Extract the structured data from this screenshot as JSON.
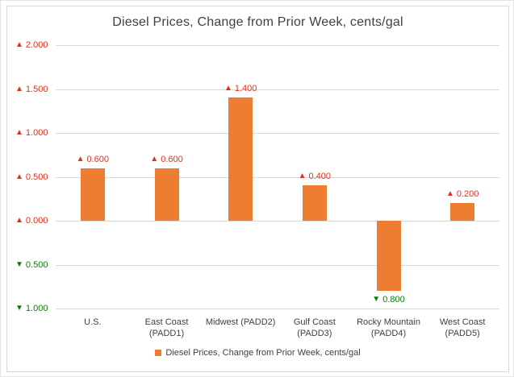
{
  "colors": {
    "bar": "#ED7D31",
    "up": "#E0301E",
    "down": "#107C10",
    "gridline": "#D9D9D9",
    "axis_text": "#404040",
    "title_text": "#404040"
  },
  "icons": {
    "up_triangle": "▲",
    "down_triangle": "▼"
  },
  "chart_data": {
    "type": "bar",
    "title": "Diesel Prices, Change from Prior Week, cents/gal",
    "xlabel": "",
    "ylabel": "",
    "ylim": [
      -1.0,
      2.0
    ],
    "grid": true,
    "categories": [
      "U.S.",
      "East Coast (PADD1)",
      "Midwest (PADD2)",
      "Gulf Coast (PADD3)",
      "Rocky Mountain (PADD4)",
      "West Coast (PADD5)"
    ],
    "category_lines": [
      [
        "U.S."
      ],
      [
        "East Coast",
        "(PADD1)"
      ],
      [
        "Midwest (PADD2)"
      ],
      [
        "Gulf Coast",
        "(PADD3)"
      ],
      [
        "Rocky Mountain",
        "(PADD4)"
      ],
      [
        "West Coast",
        "(PADD5)"
      ]
    ],
    "values": [
      0.6,
      0.6,
      1.4,
      0.4,
      -0.8,
      0.2
    ],
    "bar_labels": [
      {
        "dir": "up",
        "text": "0.600"
      },
      {
        "dir": "up",
        "text": "0.600"
      },
      {
        "dir": "up",
        "text": "1.400"
      },
      {
        "dir": "up",
        "text": "0.400"
      },
      {
        "dir": "down",
        "text": "0.800"
      },
      {
        "dir": "up",
        "text": "0.200"
      }
    ],
    "y_ticks": [
      {
        "value": 2.0,
        "label": "2.000",
        "dir": "up"
      },
      {
        "value": 1.5,
        "label": "1.500",
        "dir": "up"
      },
      {
        "value": 1.0,
        "label": "1.000",
        "dir": "up"
      },
      {
        "value": 0.5,
        "label": "0.500",
        "dir": "up"
      },
      {
        "value": 0.0,
        "label": "0.000",
        "dir": "up"
      },
      {
        "value": -0.5,
        "label": "0.500",
        "dir": "down"
      },
      {
        "value": -1.0,
        "label": "1.000",
        "dir": "down"
      }
    ],
    "legend": {
      "position": "bottom",
      "label": "Diesel Prices, Change from Prior Week, cents/gal",
      "swatch_color": "#ED7D31"
    }
  }
}
